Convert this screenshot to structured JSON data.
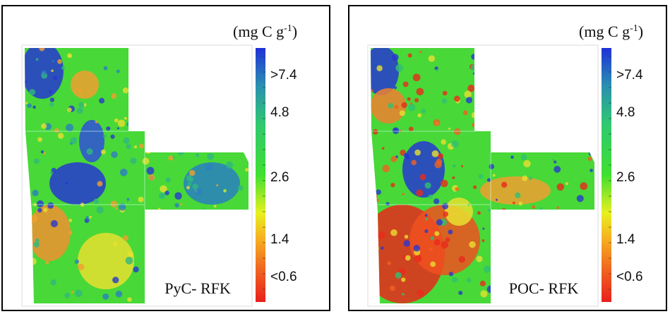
{
  "unit": {
    "prefix": "(mg C g",
    "exponent": "-1",
    "suffix": ")"
  },
  "colorbar": {
    "labels": [
      ">7.4",
      "4.8",
      "2.6",
      "1.4",
      "<0.6"
    ]
  },
  "panels": [
    {
      "label": "PyC- RFK"
    },
    {
      "label": "POC- RFK"
    }
  ]
}
